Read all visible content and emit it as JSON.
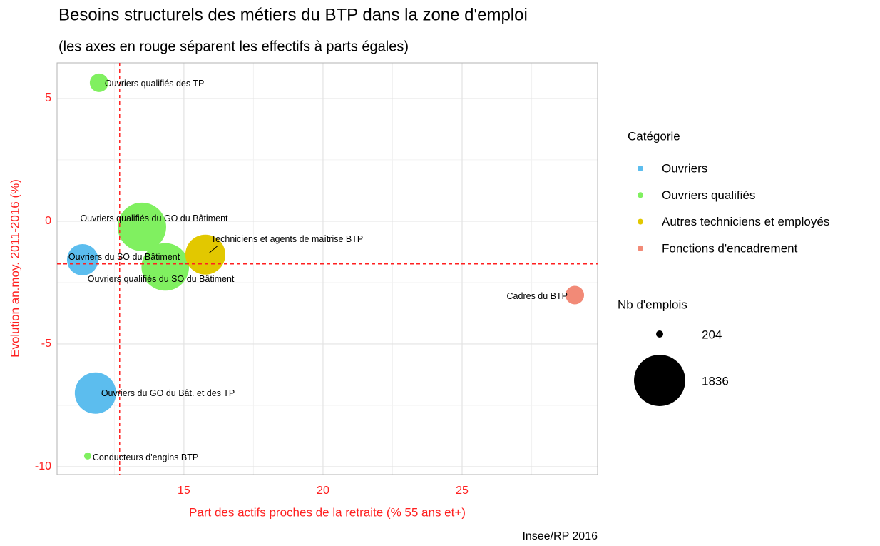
{
  "chart_data": {
    "type": "bubble",
    "title": "Besoins structurels des métiers du BTP dans la zone d'emploi",
    "subtitle": "(les axes en rouge séparent les effectifs à parts égales)",
    "x_label": "Part des actifs proches de la retraite (% 55 ans et+)",
    "y_label": "Evolution an.moy. 2011-2016 (%)",
    "caption": "Insee/RP 2016",
    "xlim": [
      10.44,
      29.87
    ],
    "ylim": [
      -10.32,
      6.45
    ],
    "xticks": [
      15,
      20,
      25
    ],
    "yticks": [
      -10,
      -5,
      0,
      5
    ],
    "xminor": [
      12.5,
      17.5,
      22.5,
      27.5
    ],
    "yminor": [
      -7.5,
      -2.5,
      2.5
    ],
    "grid": true,
    "vline": 12.69,
    "hline": -1.74,
    "ref_color": "#ff2020",
    "legend_title": "Catégorie",
    "size_legend": {
      "title": "Nb d'emplois",
      "values": [
        204,
        1836
      ]
    },
    "series": [
      {
        "name": "Ouvriers",
        "color": "#5cbdee",
        "labels": [
          "Ouvriers du SO du Bâtiment",
          "Ouvriers du GO du Bât. et des TP"
        ],
        "x": [
          11.36,
          11.82
        ],
        "values": [
          -1.57,
          -7.0
        ],
        "sizes": [
          790,
          1250
        ]
      },
      {
        "name": "Ouvriers qualifiés",
        "color": "#80f060",
        "labels": [
          "Ouvriers qualifiés des TP",
          "Ouvriers qualifiés du GO du Bâtiment",
          "Ouvriers qualifiés du SO du Bâtiment",
          "Conducteurs d'engins BTP"
        ],
        "x": [
          11.95,
          13.49,
          14.33,
          11.54
        ],
        "values": [
          5.64,
          -0.23,
          -1.86,
          -9.56
        ],
        "sizes": [
          389,
          1656,
          1600,
          204
        ]
      },
      {
        "name": "Autres techniciens et employés",
        "color": "#e2c800",
        "labels": [
          "Techniciens et agents de maîtrise BTP"
        ],
        "x": [
          15.77
        ],
        "values": [
          -1.36
        ],
        "sizes": [
          1180
        ]
      },
      {
        "name": "Fonctions d'encadrement",
        "color": "#f28a77",
        "labels": [
          "Cadres du BTP"
        ],
        "x": [
          29.05
        ],
        "values": [
          -3.01
        ],
        "sizes": [
          390
        ]
      }
    ]
  }
}
